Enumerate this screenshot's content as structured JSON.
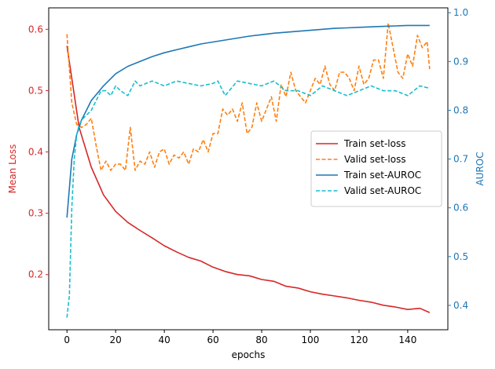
{
  "chart_data": {
    "type": "line",
    "title": "",
    "xlabel": "epochs",
    "ylabel_left": "Mean Loss",
    "ylabel_right": "AUROC",
    "xlim": [
      -7.5,
      156.5
    ],
    "ylim_left": [
      0.11,
      0.635
    ],
    "ylim_right": [
      0.35,
      1.01
    ],
    "x_ticks": [
      0,
      20,
      40,
      60,
      80,
      100,
      120,
      140
    ],
    "y_ticks_left": [
      0.2,
      0.3,
      0.4,
      0.5,
      0.6
    ],
    "y_ticks_right": [
      0.4,
      0.5,
      0.6,
      0.7,
      0.8,
      0.9,
      1.0
    ],
    "grid": false,
    "legend_position": "center-right",
    "colors": {
      "train_loss": "#d62728",
      "valid_loss": "#ff7f0e",
      "train_auroc": "#1f77b4",
      "valid_auroc": "#17becf",
      "left_axis": "#d62728",
      "right_axis": "#1f77b4"
    },
    "series": [
      {
        "name": "Train set-loss",
        "axis": "left",
        "style": "solid",
        "color": "#d62728",
        "x": [
          0,
          5,
          10,
          15,
          20,
          25,
          30,
          35,
          40,
          45,
          50,
          55,
          60,
          65,
          70,
          75,
          80,
          85,
          90,
          95,
          100,
          105,
          110,
          115,
          120,
          125,
          130,
          135,
          140,
          145,
          149
        ],
        "values": [
          0.573,
          0.44,
          0.375,
          0.33,
          0.303,
          0.285,
          0.272,
          0.26,
          0.247,
          0.237,
          0.228,
          0.222,
          0.212,
          0.205,
          0.2,
          0.198,
          0.192,
          0.189,
          0.181,
          0.178,
          0.172,
          0.168,
          0.165,
          0.162,
          0.158,
          0.155,
          0.15,
          0.147,
          0.143,
          0.145,
          0.138
        ]
      },
      {
        "name": "Valid set-loss",
        "axis": "left",
        "style": "dashed",
        "color": "#ff7f0e",
        "x": [
          0,
          2,
          4,
          6,
          8,
          10,
          12,
          14,
          16,
          18,
          20,
          22,
          24,
          26,
          28,
          30,
          32,
          34,
          36,
          38,
          40,
          42,
          44,
          46,
          48,
          50,
          52,
          54,
          56,
          58,
          60,
          62,
          64,
          66,
          68,
          70,
          72,
          74,
          76,
          78,
          80,
          82,
          84,
          86,
          88,
          90,
          92,
          94,
          96,
          98,
          100,
          102,
          104,
          106,
          108,
          110,
          112,
          114,
          116,
          118,
          120,
          122,
          124,
          126,
          128,
          130,
          132,
          134,
          136,
          138,
          140,
          142,
          144,
          146,
          148,
          149
        ],
        "values": [
          0.592,
          0.48,
          0.445,
          0.44,
          0.445,
          0.455,
          0.41,
          0.37,
          0.385,
          0.37,
          0.38,
          0.38,
          0.37,
          0.44,
          0.37,
          0.385,
          0.38,
          0.4,
          0.375,
          0.4,
          0.405,
          0.38,
          0.395,
          0.39,
          0.4,
          0.38,
          0.405,
          0.4,
          0.42,
          0.4,
          0.43,
          0.43,
          0.47,
          0.46,
          0.47,
          0.45,
          0.48,
          0.43,
          0.44,
          0.48,
          0.45,
          0.47,
          0.49,
          0.45,
          0.51,
          0.49,
          0.53,
          0.5,
          0.49,
          0.48,
          0.5,
          0.52,
          0.51,
          0.54,
          0.51,
          0.5,
          0.53,
          0.53,
          0.52,
          0.5,
          0.54,
          0.51,
          0.52,
          0.55,
          0.55,
          0.52,
          0.61,
          0.57,
          0.53,
          0.52,
          0.56,
          0.54,
          0.59,
          0.57,
          0.58,
          0.535
        ]
      },
      {
        "name": "Train set-AUROC",
        "axis": "right",
        "style": "solid",
        "color": "#1f77b4",
        "x": [
          0,
          2,
          4,
          6,
          8,
          10,
          15,
          20,
          25,
          30,
          35,
          40,
          45,
          50,
          55,
          60,
          65,
          70,
          75,
          80,
          85,
          90,
          95,
          100,
          105,
          110,
          115,
          120,
          125,
          130,
          135,
          140,
          145,
          149
        ],
        "values": [
          0.58,
          0.7,
          0.75,
          0.78,
          0.8,
          0.82,
          0.85,
          0.875,
          0.89,
          0.9,
          0.91,
          0.918,
          0.924,
          0.93,
          0.936,
          0.94,
          0.944,
          0.948,
          0.952,
          0.955,
          0.958,
          0.96,
          0.962,
          0.964,
          0.966,
          0.968,
          0.969,
          0.97,
          0.971,
          0.972,
          0.973,
          0.974,
          0.974,
          0.974
        ]
      },
      {
        "name": "Valid set-AUROC",
        "axis": "right",
        "style": "dashed",
        "color": "#17becf",
        "x": [
          0,
          1,
          2,
          3,
          4,
          5,
          6,
          8,
          10,
          12,
          14,
          16,
          18,
          20,
          22,
          25,
          28,
          30,
          35,
          40,
          45,
          50,
          55,
          60,
          62,
          65,
          70,
          75,
          80,
          85,
          90,
          95,
          100,
          105,
          110,
          115,
          120,
          125,
          130,
          135,
          140,
          145,
          149
        ],
        "values": [
          0.375,
          0.42,
          0.6,
          0.7,
          0.75,
          0.77,
          0.78,
          0.79,
          0.8,
          0.82,
          0.84,
          0.84,
          0.83,
          0.85,
          0.84,
          0.83,
          0.86,
          0.85,
          0.86,
          0.85,
          0.86,
          0.855,
          0.85,
          0.855,
          0.86,
          0.83,
          0.86,
          0.855,
          0.85,
          0.86,
          0.84,
          0.84,
          0.83,
          0.85,
          0.84,
          0.83,
          0.84,
          0.85,
          0.84,
          0.84,
          0.83,
          0.85,
          0.845
        ]
      }
    ]
  }
}
